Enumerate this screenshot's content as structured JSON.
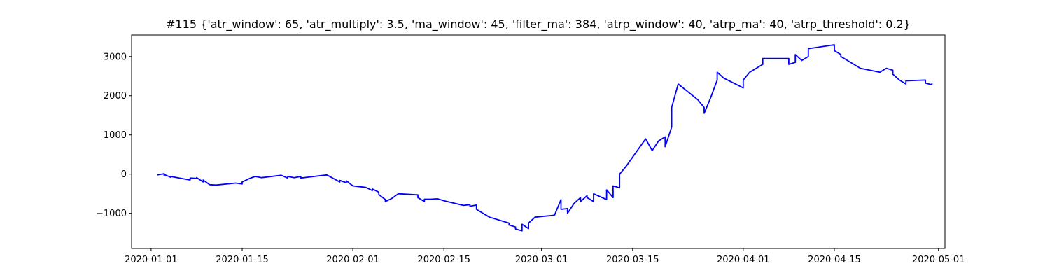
{
  "chart_data": {
    "type": "line",
    "title": "#115 {'atr_window': 65, 'atr_multiply': 3.5, 'ma_window': 45, 'filter_ma': 384, 'atrp_window': 40, 'atrp_ma': 40, 'atrp_threshold': 0.2}",
    "xlabel": "",
    "ylabel": "",
    "xlim": [
      "2019-12-29",
      "2020-05-02"
    ],
    "ylim": [
      -1900,
      3550
    ],
    "x_ticks": [
      "2020-01-01",
      "2020-01-15",
      "2020-02-01",
      "2020-02-15",
      "2020-03-01",
      "2020-03-15",
      "2020-04-01",
      "2020-04-15",
      "2020-05-01"
    ],
    "y_ticks": [
      -1000,
      0,
      1000,
      2000,
      3000
    ],
    "grid": false,
    "series": [
      {
        "name": "",
        "color": "#0000ff",
        "x": [
          "2020-01-02",
          "2020-01-02",
          "2020-01-03",
          "2020-01-03",
          "2020-01-03",
          "2020-01-04",
          "2020-01-04",
          "2020-01-07",
          "2020-01-07",
          "2020-01-08",
          "2020-01-08",
          "2020-01-09",
          "2020-01-09",
          "2020-01-10",
          "2020-01-11",
          "2020-01-14",
          "2020-01-15",
          "2020-01-15",
          "2020-01-16",
          "2020-01-17",
          "2020-01-18",
          "2020-01-21",
          "2020-01-22",
          "2020-01-22",
          "2020-01-23",
          "2020-01-24",
          "2020-01-24",
          "2020-01-25",
          "2020-01-28",
          "2020-01-29",
          "2020-01-30",
          "2020-01-30",
          "2020-01-31",
          "2020-01-31",
          "2020-02-01",
          "2020-02-03",
          "2020-02-04",
          "2020-02-04",
          "2020-02-05",
          "2020-02-05",
          "2020-02-06",
          "2020-02-06",
          "2020-02-07",
          "2020-02-08",
          "2020-02-11",
          "2020-02-11",
          "2020-02-12",
          "2020-02-12",
          "2020-02-13",
          "2020-02-14",
          "2020-02-15",
          "2020-02-18",
          "2020-02-19",
          "2020-02-19",
          "2020-02-20",
          "2020-02-20",
          "2020-02-21",
          "2020-02-22",
          "2020-02-25",
          "2020-02-25",
          "2020-02-26",
          "2020-02-26",
          "2020-02-27",
          "2020-02-27",
          "2020-02-28",
          "2020-02-28",
          "2020-02-29",
          "2020-03-03",
          "2020-03-04",
          "2020-03-04",
          "2020-03-05",
          "2020-03-05",
          "2020-03-06",
          "2020-03-07",
          "2020-03-07",
          "2020-03-08",
          "2020-03-08",
          "2020-03-09",
          "2020-03-09",
          "2020-03-11",
          "2020-03-11",
          "2020-03-12",
          "2020-03-12",
          "2020-03-13",
          "2020-03-13",
          "2020-03-14",
          "2020-03-17",
          "2020-03-18",
          "2020-03-19",
          "2020-03-20",
          "2020-03-20",
          "2020-03-21",
          "2020-03-21",
          "2020-03-22",
          "2020-03-25",
          "2020-03-26",
          "2020-03-26",
          "2020-03-27",
          "2020-03-28",
          "2020-03-28",
          "2020-03-29",
          "2020-04-01",
          "2020-04-01",
          "2020-04-02",
          "2020-04-03",
          "2020-04-04",
          "2020-04-04",
          "2020-04-05",
          "2020-04-08",
          "2020-04-08",
          "2020-04-09",
          "2020-04-09",
          "2020-04-10",
          "2020-04-11",
          "2020-04-11",
          "2020-04-15",
          "2020-04-15",
          "2020-04-16",
          "2020-04-16",
          "2020-04-17",
          "2020-04-18",
          "2020-04-19",
          "2020-04-22",
          "2020-04-23",
          "2020-04-24",
          "2020-04-24",
          "2020-04-25",
          "2020-04-26",
          "2020-04-26",
          "2020-04-29",
          "2020-04-29",
          "2020-04-30",
          "2020-04-30"
        ],
        "y": [
          0,
          -20,
          10,
          -40,
          -10,
          -80,
          -60,
          -150,
          -100,
          -110,
          -90,
          -200,
          -150,
          -270,
          -280,
          -230,
          -250,
          -200,
          -120,
          -60,
          -90,
          -30,
          -100,
          -60,
          -90,
          -60,
          -100,
          -80,
          -20,
          -110,
          -200,
          -160,
          -220,
          -170,
          -300,
          -340,
          -420,
          -380,
          -460,
          -520,
          -650,
          -700,
          -620,
          -500,
          -530,
          -600,
          -700,
          -640,
          -640,
          -630,
          -680,
          -800,
          -780,
          -820,
          -790,
          -900,
          -1000,
          -1100,
          -1250,
          -1300,
          -1350,
          -1400,
          -1450,
          -1280,
          -1390,
          -1250,
          -1100,
          -1050,
          -650,
          -900,
          -880,
          -1000,
          -750,
          -600,
          -700,
          -550,
          -600,
          -700,
          -500,
          -650,
          -400,
          -600,
          -300,
          -350,
          0,
          200,
          900,
          600,
          850,
          950,
          700,
          1200,
          1700,
          2300,
          1900,
          1700,
          1550,
          1950,
          2400,
          2600,
          2450,
          2200,
          2400,
          2600,
          2700,
          2800,
          2950,
          2950,
          2950,
          2800,
          2850,
          3050,
          2900,
          3000,
          3200,
          3300,
          3150,
          3050,
          3000,
          2900,
          2800,
          2700,
          2600,
          2700,
          2650,
          2550,
          2400,
          2300,
          2380,
          2400,
          2320,
          2280,
          2320
        ]
      }
    ]
  }
}
